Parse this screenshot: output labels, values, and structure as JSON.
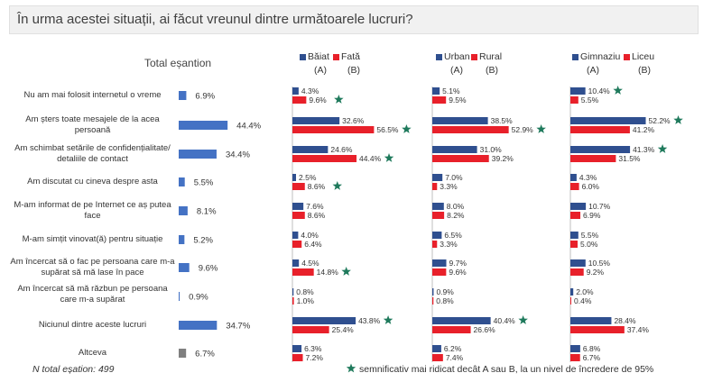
{
  "title": "În urma acestei situații, ai făcut vreunul dintre următoarele lucruri?",
  "total_label": "Total eșantion",
  "footnote": "N total eșation: 499",
  "significance_note": "semnificativ mai ridicat decât A sau B, la un nivel de încredere de 95%",
  "colors": {
    "blue": "#2f4f8f",
    "red": "#e8202a",
    "total_blue": "#4472c4",
    "gray": "#7f7f7f",
    "star": "#1f7a5c"
  },
  "groups": [
    {
      "a_name": "Băiat",
      "b_name": "Fată",
      "a_letter": "(A)",
      "b_letter": "(B)"
    },
    {
      "a_name": "Urban",
      "b_name": "Rural",
      "a_letter": "(A)",
      "b_letter": "(B)"
    },
    {
      "a_name": "Gimnaziu",
      "b_name": "Liceu",
      "a_letter": "(A)",
      "b_letter": "(B)"
    }
  ],
  "chart_data": {
    "type": "bar",
    "categories": [
      "Nu am mai folosit internetul o vreme",
      "Am șters toate mesajele de la acea persoană",
      "Am schimbat setările de confidențialitate/ detaliile de contact",
      "Am discutat cu cineva despre asta",
      "M-am informat de pe Internet ce aș putea face",
      "M-am simțit vinovat(ă) pentru situație",
      "Am încercat să o fac pe persoana care m-a supărat să mă lase în pace",
      "Am încercat să mă răzbun pe persoana care m-a supărat",
      "Niciunul dintre aceste lucruri",
      "Altceva"
    ],
    "total": [
      6.9,
      44.4,
      34.4,
      5.5,
      8.1,
      5.2,
      9.6,
      0.9,
      34.7,
      6.7
    ],
    "series": [
      {
        "name": "Băiat",
        "values": [
          4.3,
          32.6,
          24.6,
          2.5,
          7.6,
          4.0,
          4.5,
          0.8,
          43.8,
          6.3
        ],
        "significant": [
          false,
          false,
          false,
          false,
          false,
          false,
          false,
          false,
          true,
          false
        ]
      },
      {
        "name": "Fată",
        "values": [
          9.6,
          56.5,
          44.4,
          8.6,
          8.6,
          6.4,
          14.8,
          1.0,
          25.4,
          7.2
        ],
        "significant": [
          true,
          true,
          true,
          true,
          false,
          false,
          true,
          false,
          false,
          false
        ]
      },
      {
        "name": "Urban",
        "values": [
          5.1,
          38.5,
          31.0,
          7.0,
          8.0,
          6.5,
          9.7,
          0.9,
          40.4,
          6.2
        ],
        "significant": [
          false,
          false,
          false,
          false,
          false,
          false,
          false,
          false,
          true,
          false
        ]
      },
      {
        "name": "Rural",
        "values": [
          9.5,
          52.9,
          39.2,
          3.3,
          8.2,
          3.3,
          9.6,
          0.8,
          26.6,
          7.4
        ],
        "significant": [
          false,
          true,
          false,
          false,
          false,
          false,
          false,
          false,
          false,
          false
        ]
      },
      {
        "name": "Gimnaziu",
        "values": [
          10.4,
          52.2,
          41.3,
          4.3,
          10.7,
          5.5,
          10.5,
          2.0,
          28.4,
          6.8
        ],
        "significant": [
          true,
          true,
          true,
          false,
          false,
          false,
          false,
          false,
          false,
          false
        ]
      },
      {
        "name": "Liceu",
        "values": [
          5.5,
          41.2,
          31.5,
          6.0,
          6.9,
          5.0,
          9.2,
          0.4,
          37.4,
          6.7
        ],
        "significant": [
          false,
          false,
          false,
          false,
          false,
          false,
          false,
          false,
          false,
          false
        ]
      }
    ]
  }
}
